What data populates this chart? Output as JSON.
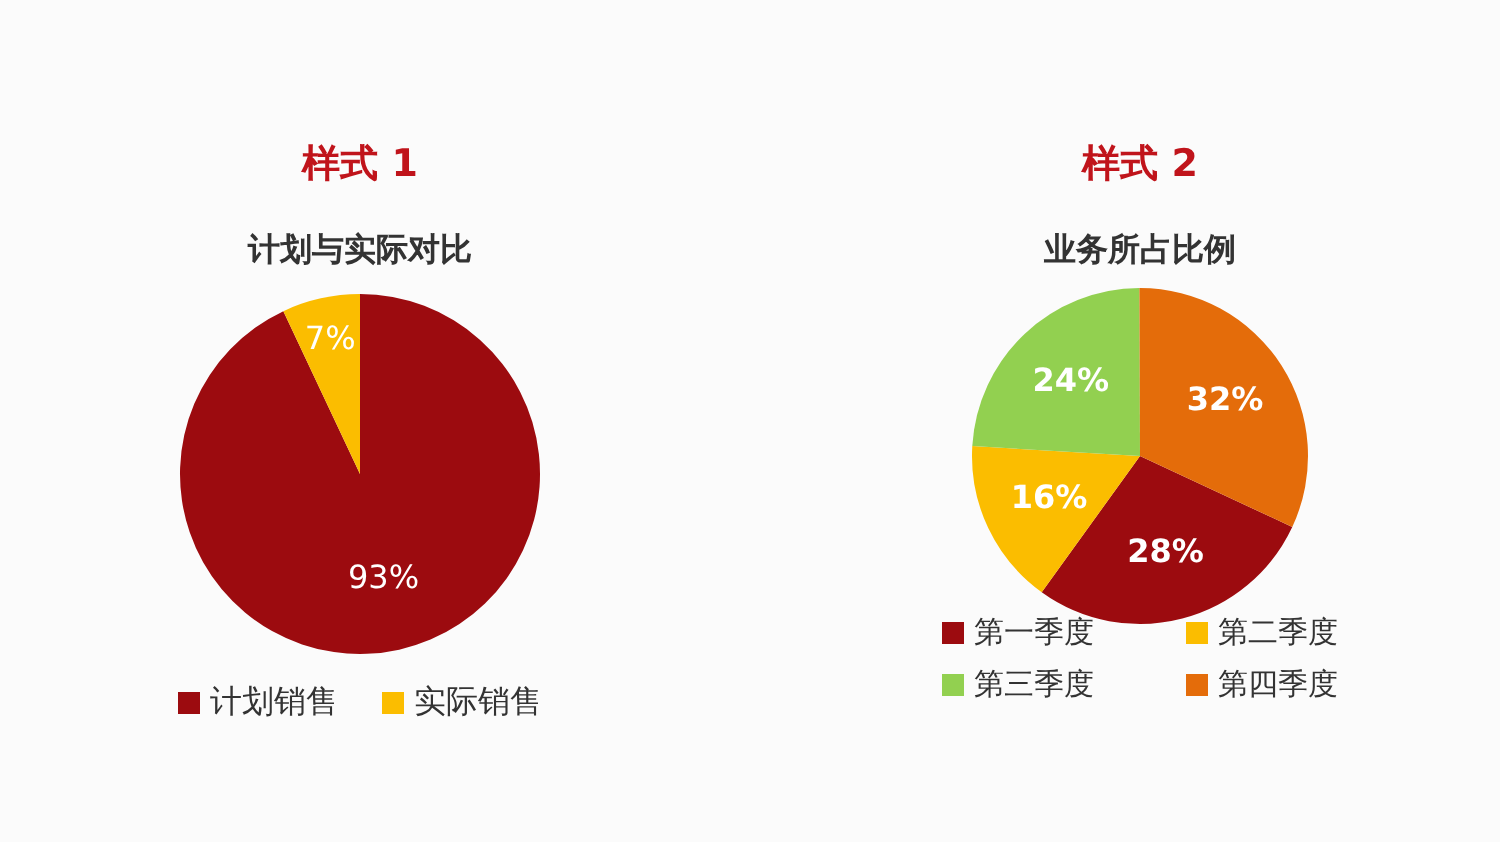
{
  "chart_data": [
    {
      "type": "pie",
      "title": "样式 1",
      "subtitle": "计划与实际对比",
      "categories": [
        "计划销售",
        "实际销售"
      ],
      "values": [
        93,
        7
      ],
      "colors": [
        "#9c0b0f",
        "#fbbd00"
      ],
      "value_labels": [
        "93%",
        "7%"
      ],
      "legend": "bottom"
    },
    {
      "type": "pie",
      "title": "样式 2",
      "subtitle": "业务所占比例",
      "categories": [
        "第一季度",
        "第二季度",
        "第三季度",
        "第四季度"
      ],
      "values": [
        28,
        16,
        24,
        32
      ],
      "colors": [
        "#9c0b0f",
        "#fbbd00",
        "#92d050",
        "#e46c0a"
      ],
      "value_labels": [
        "28%",
        "16%",
        "24%",
        "32%"
      ],
      "legend": "bottom"
    }
  ]
}
